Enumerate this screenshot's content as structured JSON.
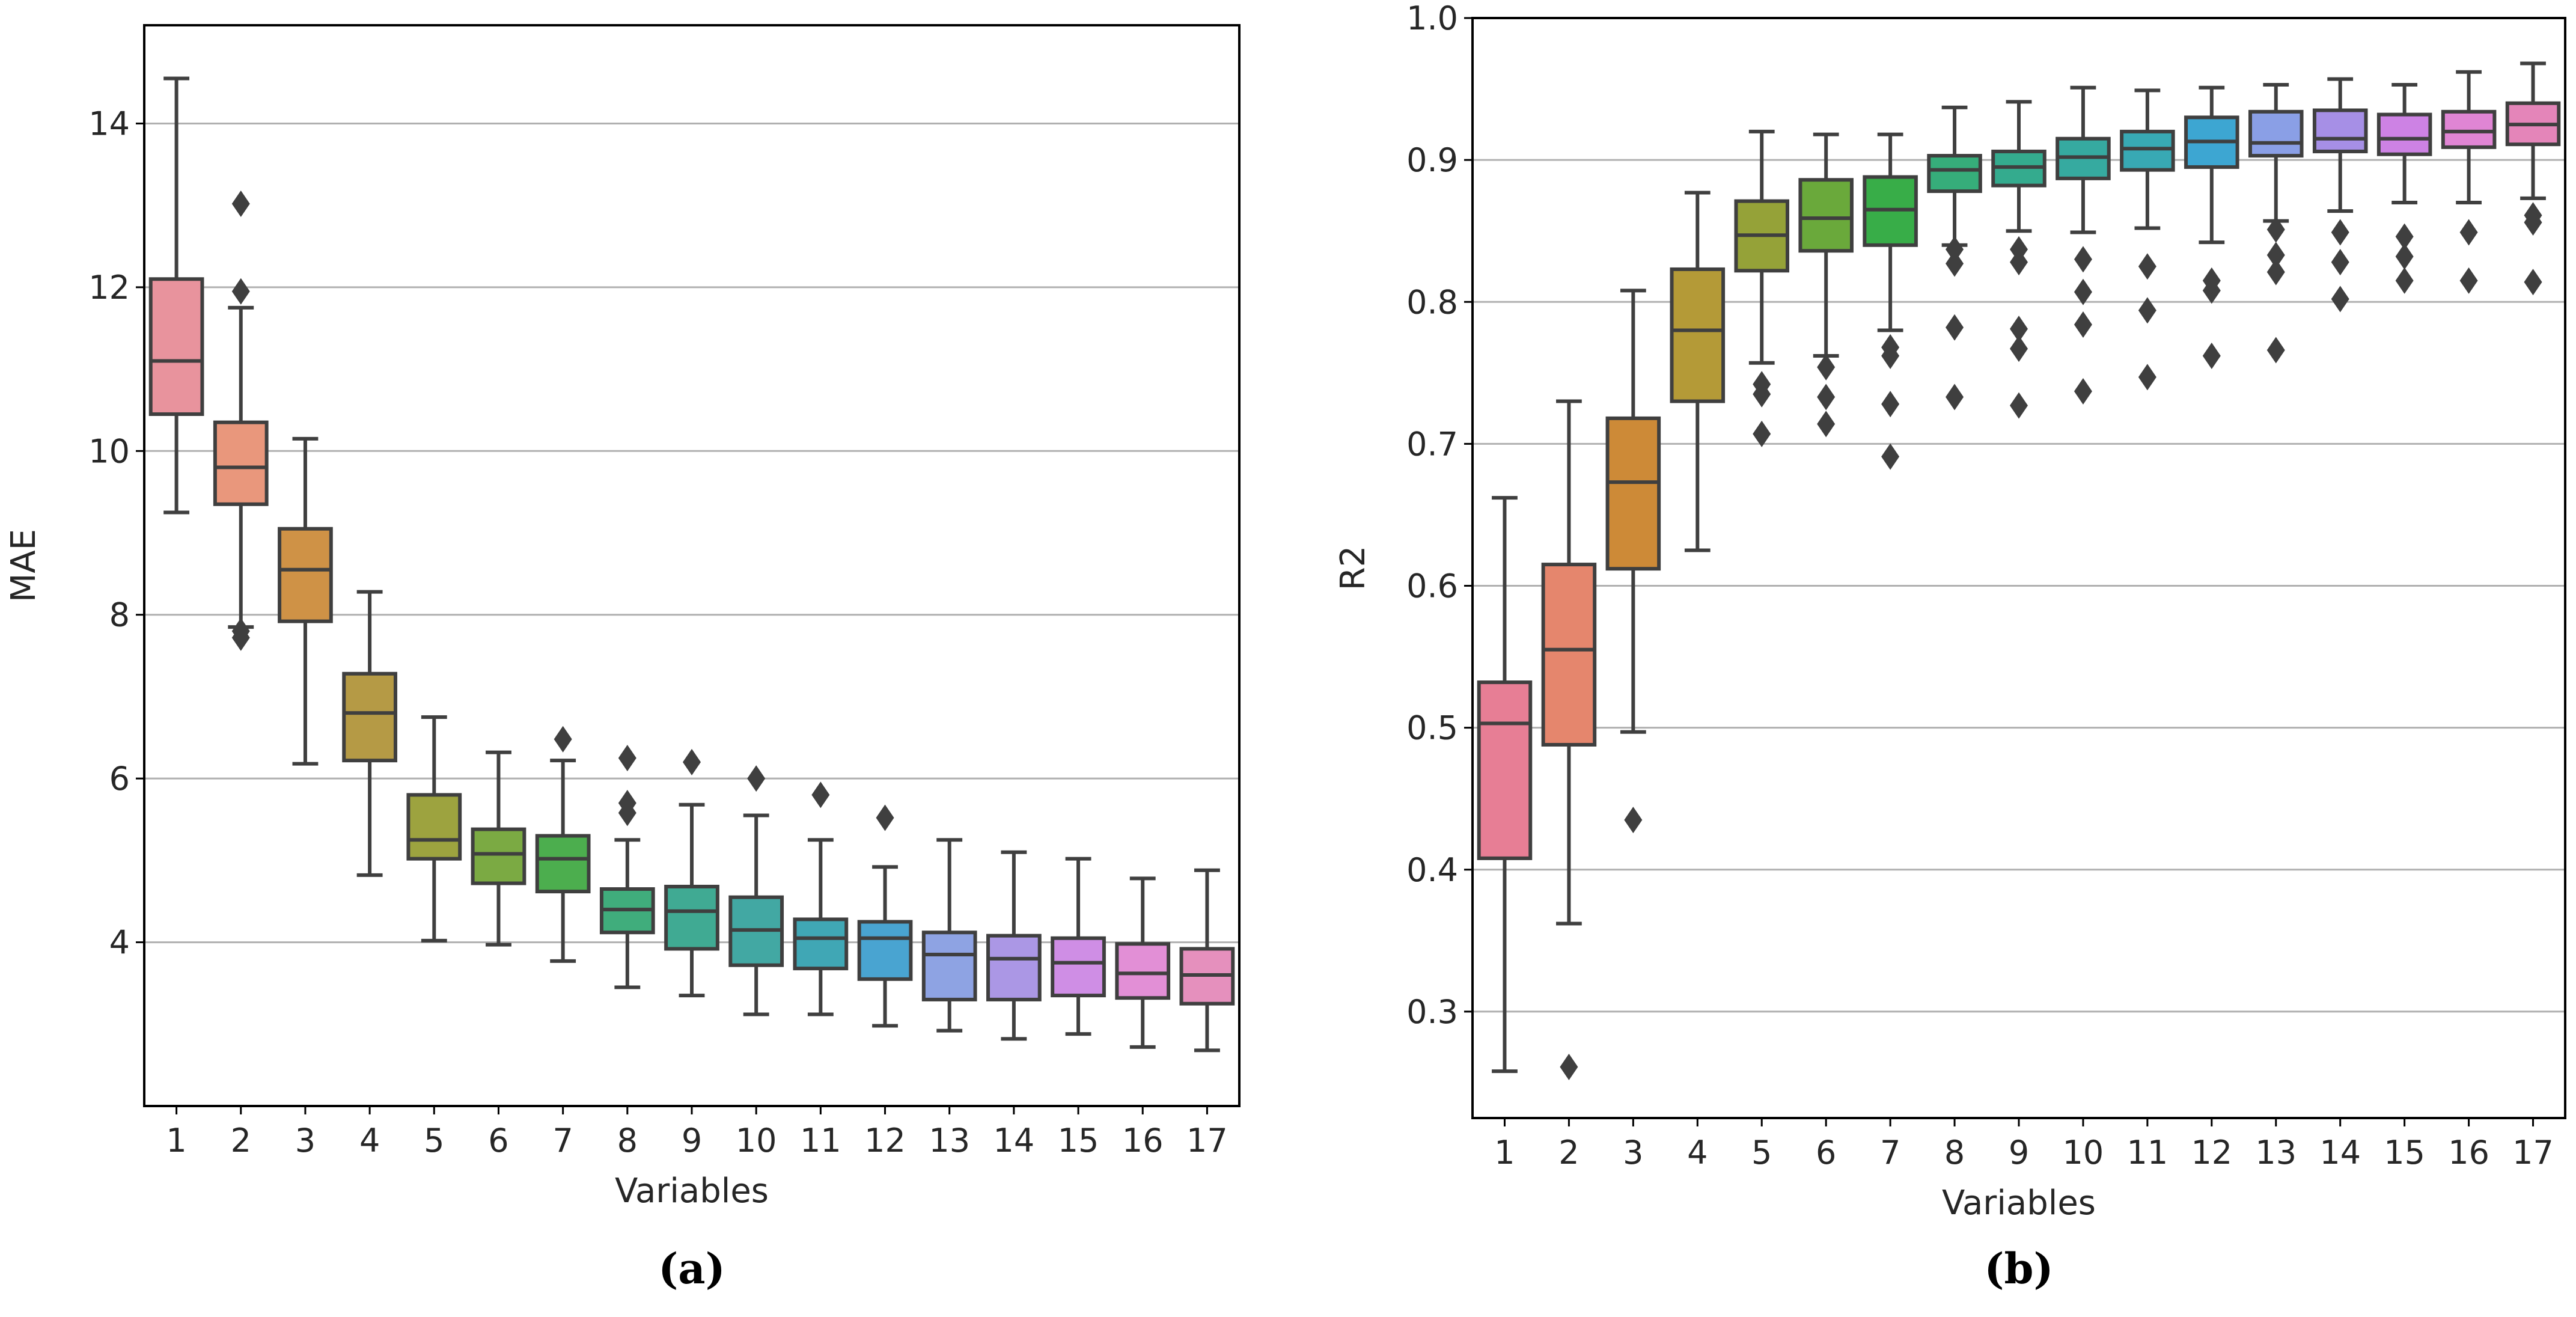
{
  "chart_data": [
    {
      "type": "box",
      "panel_label": "(a)",
      "xlabel": "Variables",
      "ylabel": "MAE",
      "ylim": [
        2.0,
        15.2
      ],
      "yticks": [
        4,
        6,
        8,
        10,
        12,
        14
      ],
      "grid": "horizontal",
      "categories": [
        "1",
        "2",
        "3",
        "4",
        "5",
        "6",
        "7",
        "8",
        "9",
        "10",
        "11",
        "12",
        "13",
        "14",
        "15",
        "16",
        "17"
      ],
      "boxes": [
        {
          "category": "1",
          "whisker_low": 9.25,
          "q1": 10.45,
          "median": 11.1,
          "q3": 12.1,
          "whisker_high": 14.55,
          "outliers": [],
          "color": "#e8939d"
        },
        {
          "category": "2",
          "whisker_low": 7.85,
          "q1": 9.35,
          "median": 9.8,
          "q3": 10.35,
          "whisker_high": 11.75,
          "outliers": [
            7.72,
            7.8,
            11.95,
            13.02
          ],
          "color": "#e9977c"
        },
        {
          "category": "3",
          "whisker_low": 6.18,
          "q1": 7.92,
          "median": 8.55,
          "q3": 9.05,
          "whisker_high": 10.15,
          "outliers": [],
          "color": "#cf9246"
        },
        {
          "category": "4",
          "whisker_low": 4.82,
          "q1": 6.22,
          "median": 6.8,
          "q3": 7.28,
          "whisker_high": 8.28,
          "outliers": [],
          "color": "#b59a45"
        },
        {
          "category": "5",
          "whisker_low": 4.02,
          "q1": 5.02,
          "median": 5.25,
          "q3": 5.8,
          "whisker_high": 6.75,
          "outliers": [],
          "color": "#9da33f"
        },
        {
          "category": "6",
          "whisker_low": 3.97,
          "q1": 4.72,
          "median": 5.08,
          "q3": 5.38,
          "whisker_high": 6.32,
          "outliers": [],
          "color": "#7baa43"
        },
        {
          "category": "7",
          "whisker_low": 3.77,
          "q1": 4.62,
          "median": 5.02,
          "q3": 5.3,
          "whisker_high": 6.22,
          "outliers": [
            6.48
          ],
          "color": "#4cae4e"
        },
        {
          "category": "8",
          "whisker_low": 3.45,
          "q1": 4.12,
          "median": 4.4,
          "q3": 4.65,
          "whisker_high": 5.25,
          "outliers": [
            5.58,
            5.7,
            6.25
          ],
          "color": "#40ad7c"
        },
        {
          "category": "9",
          "whisker_low": 3.35,
          "q1": 3.92,
          "median": 4.38,
          "q3": 4.68,
          "whisker_high": 5.68,
          "outliers": [
            6.2
          ],
          "color": "#40aa93"
        },
        {
          "category": "10",
          "whisker_low": 3.12,
          "q1": 3.72,
          "median": 4.15,
          "q3": 4.55,
          "whisker_high": 5.55,
          "outliers": [
            6.0
          ],
          "color": "#42a8a3"
        },
        {
          "category": "11",
          "whisker_low": 3.12,
          "q1": 3.68,
          "median": 4.05,
          "q3": 4.28,
          "whisker_high": 5.25,
          "outliers": [
            5.8
          ],
          "color": "#40a7b5"
        },
        {
          "category": "12",
          "whisker_low": 2.98,
          "q1": 3.55,
          "median": 4.05,
          "q3": 4.25,
          "whisker_high": 4.92,
          "outliers": [
            5.52
          ],
          "color": "#49a4d1"
        },
        {
          "category": "13",
          "whisker_low": 2.92,
          "q1": 3.3,
          "median": 3.85,
          "q3": 4.12,
          "whisker_high": 5.25,
          "outliers": [],
          "color": "#8ea3e3"
        },
        {
          "category": "14",
          "whisker_low": 2.82,
          "q1": 3.3,
          "median": 3.8,
          "q3": 4.08,
          "whisker_high": 5.1,
          "outliers": [],
          "color": "#ab97e5"
        },
        {
          "category": "15",
          "whisker_low": 2.88,
          "q1": 3.35,
          "median": 3.75,
          "q3": 4.05,
          "whisker_high": 5.02,
          "outliers": [],
          "color": "#cf8ee5"
        },
        {
          "category": "16",
          "whisker_low": 2.72,
          "q1": 3.32,
          "median": 3.62,
          "q3": 3.98,
          "whisker_high": 4.78,
          "outliers": [],
          "color": "#e28fd6"
        },
        {
          "category": "17",
          "whisker_low": 2.68,
          "q1": 3.25,
          "median": 3.6,
          "q3": 3.92,
          "whisker_high": 4.88,
          "outliers": [],
          "color": "#e590bd"
        }
      ]
    },
    {
      "type": "box",
      "panel_label": "(b)",
      "xlabel": "Variables",
      "ylabel": "R2",
      "ylim": [
        0.225,
        1.0
      ],
      "yticks": [
        0.3,
        0.4,
        0.5,
        0.6,
        0.7,
        0.8,
        0.9,
        1.0
      ],
      "grid": "horizontal",
      "categories": [
        "1",
        "2",
        "3",
        "4",
        "5",
        "6",
        "7",
        "8",
        "9",
        "10",
        "11",
        "12",
        "13",
        "14",
        "15",
        "16",
        "17"
      ],
      "boxes": [
        {
          "category": "1",
          "whisker_low": 0.258,
          "q1": 0.408,
          "median": 0.503,
          "q3": 0.532,
          "whisker_high": 0.662,
          "outliers": [],
          "color": "#e77e95"
        },
        {
          "category": "2",
          "whisker_low": 0.362,
          "q1": 0.488,
          "median": 0.555,
          "q3": 0.615,
          "whisker_high": 0.73,
          "outliers": [
            0.261
          ],
          "color": "#e5866d"
        },
        {
          "category": "3",
          "whisker_low": 0.497,
          "q1": 0.612,
          "median": 0.673,
          "q3": 0.718,
          "whisker_high": 0.808,
          "outliers": [
            0.435
          ],
          "color": "#cd8a37"
        },
        {
          "category": "4",
          "whisker_low": 0.625,
          "q1": 0.73,
          "median": 0.78,
          "q3": 0.823,
          "whisker_high": 0.877,
          "outliers": [],
          "color": "#b49a37"
        },
        {
          "category": "5",
          "whisker_low": 0.757,
          "q1": 0.822,
          "median": 0.847,
          "q3": 0.871,
          "whisker_high": 0.92,
          "outliers": [
            0.707,
            0.735,
            0.742
          ],
          "color": "#95a238"
        },
        {
          "category": "6",
          "whisker_low": 0.762,
          "q1": 0.836,
          "median": 0.859,
          "q3": 0.886,
          "whisker_high": 0.918,
          "outliers": [
            0.714,
            0.733,
            0.754
          ],
          "color": "#6aa93b"
        },
        {
          "category": "7",
          "whisker_low": 0.78,
          "q1": 0.84,
          "median": 0.865,
          "q3": 0.888,
          "whisker_high": 0.918,
          "outliers": [
            0.691,
            0.728,
            0.762,
            0.768
          ],
          "color": "#38ad48"
        },
        {
          "category": "8",
          "whisker_low": 0.84,
          "q1": 0.878,
          "median": 0.893,
          "q3": 0.903,
          "whisker_high": 0.937,
          "outliers": [
            0.733,
            0.782,
            0.827,
            0.837
          ],
          "color": "#36ad7a"
        },
        {
          "category": "9",
          "whisker_low": 0.85,
          "q1": 0.882,
          "median": 0.895,
          "q3": 0.906,
          "whisker_high": 0.941,
          "outliers": [
            0.727,
            0.767,
            0.781,
            0.828,
            0.837
          ],
          "color": "#34ab8e"
        },
        {
          "category": "10",
          "whisker_low": 0.849,
          "q1": 0.887,
          "median": 0.902,
          "q3": 0.915,
          "whisker_high": 0.951,
          "outliers": [
            0.737,
            0.784,
            0.807,
            0.83
          ],
          "color": "#36aaa0"
        },
        {
          "category": "11",
          "whisker_low": 0.852,
          "q1": 0.893,
          "median": 0.908,
          "q3": 0.92,
          "whisker_high": 0.949,
          "outliers": [
            0.747,
            0.794,
            0.825
          ],
          "color": "#38a9b4"
        },
        {
          "category": "12",
          "whisker_low": 0.842,
          "q1": 0.895,
          "median": 0.913,
          "q3": 0.93,
          "whisker_high": 0.951,
          "outliers": [
            0.762,
            0.808,
            0.815
          ],
          "color": "#3da6d2"
        },
        {
          "category": "13",
          "whisker_low": 0.857,
          "q1": 0.903,
          "median": 0.912,
          "q3": 0.934,
          "whisker_high": 0.953,
          "outliers": [
            0.766,
            0.821,
            0.833,
            0.851
          ],
          "color": "#8a9fe6"
        },
        {
          "category": "14",
          "whisker_low": 0.864,
          "q1": 0.906,
          "median": 0.915,
          "q3": 0.935,
          "whisker_high": 0.957,
          "outliers": [
            0.802,
            0.828,
            0.849
          ],
          "color": "#a68fe6"
        },
        {
          "category": "15",
          "whisker_low": 0.87,
          "q1": 0.904,
          "median": 0.915,
          "q3": 0.932,
          "whisker_high": 0.953,
          "outliers": [
            0.815,
            0.832,
            0.846
          ],
          "color": "#cd82e4"
        },
        {
          "category": "16",
          "whisker_low": 0.87,
          "q1": 0.909,
          "median": 0.92,
          "q3": 0.934,
          "whisker_high": 0.962,
          "outliers": [
            0.815,
            0.849
          ],
          "color": "#e085d4"
        },
        {
          "category": "17",
          "whisker_low": 0.873,
          "q1": 0.911,
          "median": 0.925,
          "q3": 0.94,
          "whisker_high": 0.968,
          "outliers": [
            0.814,
            0.856,
            0.861
          ],
          "color": "#e485b9"
        }
      ]
    }
  ]
}
